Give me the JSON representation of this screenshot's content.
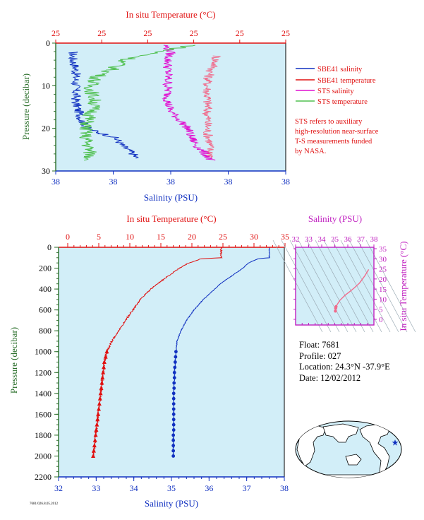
{
  "top_panel": {
    "top_axis_title": "In situ Temperature (°C)",
    "bottom_axis_title": "Salinity (PSU)",
    "left_axis_title": "Pressure (decibar)",
    "legend": [
      {
        "label": "SBE41 salinity",
        "color": "#1030c0"
      },
      {
        "label": "SBE41 temperature",
        "color": "#e01010"
      },
      {
        "label": "STS salinity",
        "color": "#e010d0"
      },
      {
        "label": "STS temperature",
        "color": "#50c050"
      }
    ],
    "note_lines": [
      "STS refers to auxiliary",
      "high-resolution near-surface",
      "T-S measurements funded",
      "by NASA."
    ]
  },
  "main_panel": {
    "top_axis_title": "In situ Temperature (°C)",
    "bottom_axis_title": "Salinity (PSU)",
    "left_axis_title": "Pressure (decibar)"
  },
  "ts_panel": {
    "top_axis_title": "Salinity (PSU)",
    "right_axis_title": "In situ Temperature (°C)"
  },
  "float_info": {
    "float": "Float:  7681",
    "profile": "Profile:  027",
    "location": "Location:  24.3°N  -37.9°E",
    "date": "Date:  12/02/2012"
  },
  "stamp": "7681/026.8.05.2012",
  "colors": {
    "plot_bg": "#d2eef8",
    "salinity": "#1030c0",
    "temperature": "#e01010",
    "sts_salinity": "#e010d0",
    "sts_temperature": "#50c050",
    "axis_text_red": "#e01010",
    "axis_text_blue": "#1030c0",
    "axis_text_green": "#2a6e2a",
    "axis_text_magenta": "#c020c0",
    "ts_trace": "#f06c8c",
    "ts_ticks": "#c020c0"
  },
  "chart_data": [
    {
      "type": "line",
      "panel": "near-surface profile",
      "x_top": {
        "label": "In situ Temperature (°C)",
        "ticks": [
          "25",
          "25",
          "25",
          "25",
          "25",
          "25"
        ],
        "range": [
          24.6,
          25.6
        ]
      },
      "x_bottom": {
        "label": "Salinity (PSU)",
        "ticks": [
          "38",
          "38",
          "38",
          "38",
          "38"
        ],
        "range": [
          37.6,
          38.4
        ]
      },
      "y": {
        "label": "Pressure (decibar)",
        "ticks": [
          0,
          10,
          20,
          30
        ],
        "range": [
          0,
          30
        ],
        "inverted": true
      },
      "series": [
        {
          "name": "SBE41 salinity",
          "axis": "bottom",
          "pressure": [
            2,
            4,
            6,
            8,
            10,
            12,
            14,
            16,
            18,
            20,
            21,
            22,
            23,
            24,
            25,
            26,
            27
          ],
          "values": [
            37.66,
            37.66,
            37.67,
            37.67,
            37.67,
            37.67,
            37.67,
            37.68,
            37.69,
            37.71,
            37.75,
            37.8,
            37.82,
            37.83,
            37.85,
            37.87,
            37.88
          ]
        },
        {
          "name": "SBE41 temperature",
          "axis": "top",
          "pressure": [
            3,
            5,
            7,
            9,
            11,
            13,
            15,
            17,
            19,
            21,
            23,
            25,
            27
          ],
          "values": [
            25.3,
            25.29,
            25.27,
            25.26,
            25.26,
            25.26,
            25.26,
            25.26,
            25.26,
            25.26,
            25.27,
            25.27,
            25.28
          ]
        },
        {
          "name": "STS salinity",
          "axis": "bottom",
          "pressure": [
            0.5,
            2,
            4,
            6,
            8,
            10,
            12,
            14,
            16,
            18,
            20,
            22,
            24,
            26,
            27.5
          ],
          "values": [
            37.98,
            38.0,
            37.99,
            37.99,
            37.99,
            37.99,
            37.99,
            37.99,
            38.0,
            38.03,
            38.06,
            38.07,
            38.09,
            38.12,
            38.14
          ]
        },
        {
          "name": "STS temperature",
          "axis": "top",
          "pressure": [
            0.5,
            2,
            4,
            6,
            8,
            10,
            12,
            14,
            16,
            18,
            20,
            22,
            24,
            26,
            27.5
          ],
          "values": [
            25.2,
            25.05,
            24.9,
            24.85,
            24.78,
            24.75,
            24.76,
            24.77,
            24.76,
            24.74,
            24.73,
            24.73,
            24.74,
            24.75,
            24.75
          ]
        }
      ],
      "legend": [
        "SBE41 salinity",
        "SBE41 temperature",
        "STS salinity",
        "STS temperature"
      ],
      "legend_position": "right"
    },
    {
      "type": "line",
      "panel": "full-depth profile",
      "x_top": {
        "label": "In situ Temperature (°C)",
        "ticks": [
          0,
          5,
          10,
          15,
          20,
          25,
          30,
          35
        ],
        "range": [
          -2,
          35
        ]
      },
      "x_bottom": {
        "label": "Salinity (PSU)",
        "ticks": [
          32,
          33,
          34,
          35,
          36,
          37,
          38
        ],
        "range": [
          32,
          38
        ]
      },
      "y": {
        "label": "Pressure (decibar)",
        "ticks": [
          0,
          200,
          400,
          600,
          800,
          1000,
          1200,
          1400,
          1600,
          1800,
          2000,
          2200
        ],
        "range": [
          0,
          2200
        ],
        "inverted": true
      },
      "series": [
        {
          "name": "Temperature",
          "axis": "top",
          "pressure": [
            0,
            100,
            110,
            150,
            200,
            250,
            300,
            350,
            400,
            450,
            500,
            600,
            700,
            800,
            900,
            1000,
            1050,
            1100,
            1150,
            1200,
            1250,
            1300,
            1350,
            1400,
            1450,
            1500,
            1550,
            1600,
            1650,
            1700,
            1750,
            1800,
            1850,
            1900,
            1950,
            2000
          ],
          "values": [
            24.7,
            24.7,
            21.5,
            19.5,
            18.0,
            16.8,
            15.6,
            14.5,
            13.4,
            12.5,
            11.7,
            10.5,
            9.3,
            8.2,
            7.1,
            6.3,
            6.1,
            5.9,
            5.8,
            5.7,
            5.6,
            5.5,
            5.4,
            5.3,
            5.2,
            5.1,
            5.0,
            4.9,
            4.8,
            4.7,
            4.6,
            4.5,
            4.4,
            4.3,
            4.2,
            4.1
          ]
        },
        {
          "name": "Salinity",
          "axis": "bottom",
          "pressure": [
            0,
            100,
            110,
            150,
            200,
            250,
            300,
            350,
            400,
            450,
            500,
            600,
            700,
            800,
            900,
            1000,
            1050,
            1100,
            1150,
            1200,
            1250,
            1300,
            1350,
            1400,
            1450,
            1500,
            1550,
            1600,
            1650,
            1700,
            1750,
            1800,
            1850,
            1900,
            1950,
            2000
          ],
          "values": [
            37.6,
            37.6,
            37.3,
            37.05,
            36.9,
            36.7,
            36.5,
            36.3,
            36.15,
            36.0,
            35.85,
            35.6,
            35.4,
            35.25,
            35.15,
            35.12,
            35.11,
            35.1,
            35.09,
            35.08,
            35.08,
            35.07,
            35.07,
            35.06,
            35.06,
            35.06,
            35.06,
            35.06,
            35.06,
            35.06,
            35.06,
            35.05,
            35.05,
            35.05,
            35.05,
            35.05
          ]
        }
      ],
      "markers_from_pressure": 1000
    },
    {
      "type": "scatter",
      "panel": "T-S diagram",
      "x_top": {
        "label": "Salinity (PSU)",
        "ticks": [
          32,
          33,
          34,
          35,
          36,
          37,
          38
        ],
        "range": [
          32,
          38
        ]
      },
      "y_right": {
        "label": "In situ Temperature (°C)",
        "ticks": [
          0,
          5,
          10,
          15,
          20,
          25,
          30,
          35
        ],
        "range": [
          -2,
          35
        ]
      },
      "series": [
        {
          "name": "T-S",
          "salinity": [
            35.05,
            35.07,
            35.1,
            35.2,
            35.4,
            35.8,
            36.1,
            36.5,
            36.9,
            37.3,
            37.6
          ],
          "temperature": [
            4.1,
            5.5,
            6.3,
            7.5,
            9.5,
            12.0,
            13.5,
            15.6,
            18.0,
            21.5,
            24.7
          ]
        }
      ]
    }
  ]
}
